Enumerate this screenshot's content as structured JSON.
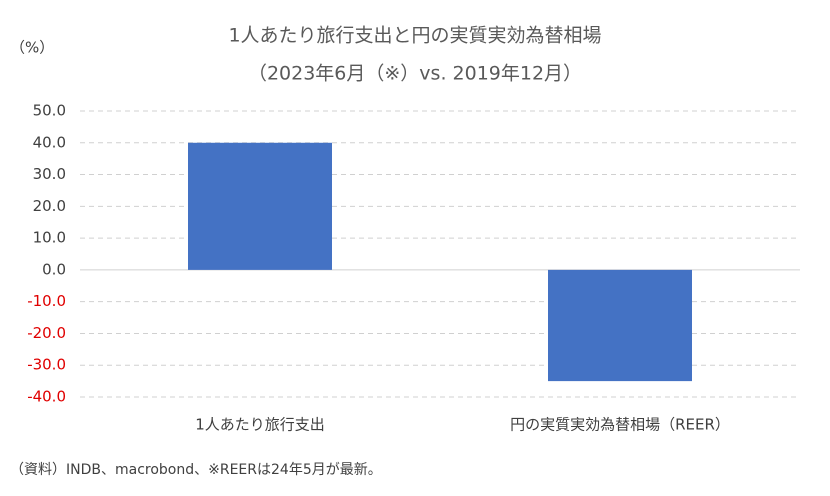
{
  "chart_data": {
    "type": "bar",
    "title": [
      "1人あたり旅行支出と円の実質実効為替相場",
      "（2023年6月（※）vs. 2019年12月）"
    ],
    "y_unit_label": "（%）",
    "note": "（資料）INDB、macrobond、※REERは24年5月が最新。",
    "categories": [
      "1人あたり旅行支出",
      "円の実質実効為替相場（REER）"
    ],
    "values": [
      40,
      -35
    ],
    "color": "#4472c4",
    "negative_tick_color": "#e00000",
    "ylim": [
      -40,
      50
    ],
    "yticks": [
      {
        "value": -40,
        "label": "-40.0"
      },
      {
        "value": -30,
        "label": "-30.0"
      },
      {
        "value": -20,
        "label": "-20.0"
      },
      {
        "value": -10,
        "label": "-10.0"
      },
      {
        "value": 0,
        "label": "0.0"
      },
      {
        "value": 10,
        "label": "10.0"
      },
      {
        "value": 20,
        "label": "20.0"
      },
      {
        "value": 30,
        "label": "30.0"
      },
      {
        "value": 40,
        "label": "40.0"
      },
      {
        "value": 50,
        "label": "50.0"
      }
    ],
    "grid": true
  }
}
